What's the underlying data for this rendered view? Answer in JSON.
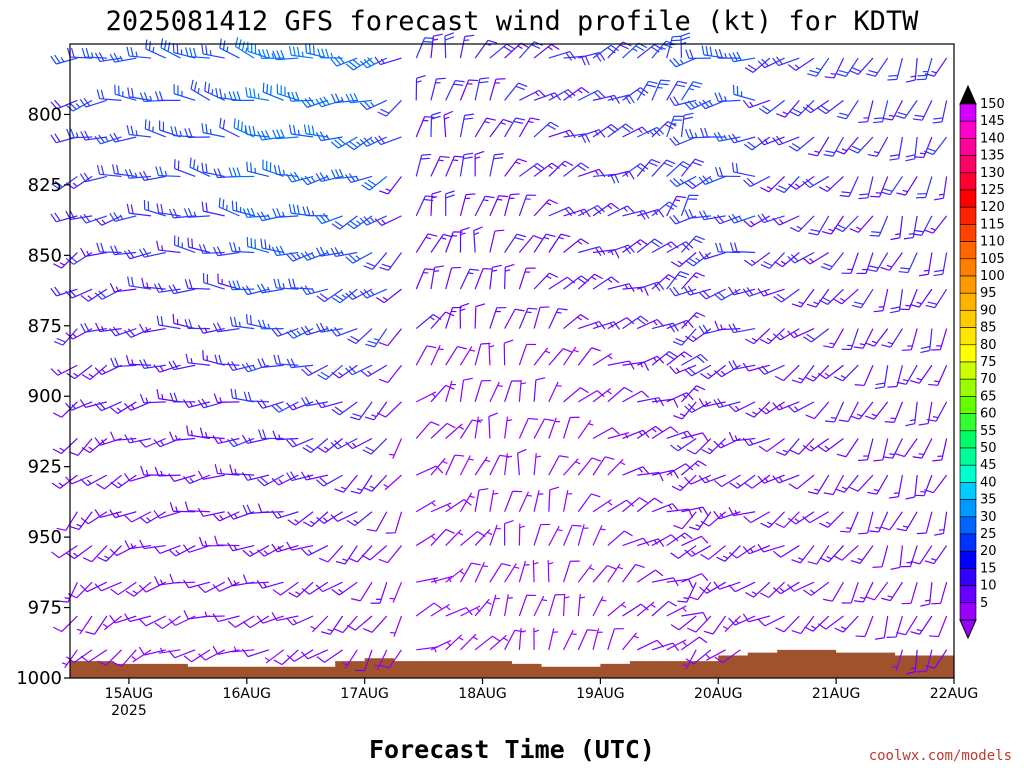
{
  "chart_data": {
    "type": "wind_barb_time_height",
    "title": "2025081412 GFS forecast wind profile (kt) for KDTW",
    "xlabel": "Forecast Time (UTC)",
    "ylabel": "",
    "units": "kt",
    "y_axis": {
      "range": [
        1000,
        775
      ],
      "ticks": [
        800,
        825,
        850,
        875,
        900,
        925,
        950,
        975,
        1000
      ]
    },
    "x_axis": {
      "start_hours": 0,
      "end_hours": 180,
      "ticks": [
        {
          "label": "15AUG",
          "sublabel": "2025"
        },
        {
          "label": "16AUG"
        },
        {
          "label": "17AUG"
        },
        {
          "label": "18AUG"
        },
        {
          "label": "19AUG"
        },
        {
          "label": "20AUG"
        },
        {
          "label": "21AUG"
        },
        {
          "label": "22AUG"
        }
      ]
    },
    "barb_levels_hpa": [
      780,
      795,
      808,
      822,
      836,
      849,
      862,
      876,
      889,
      902,
      915,
      928,
      941,
      953,
      966,
      978,
      990
    ],
    "barb_time_step_hours": 3,
    "surface_pressure_hpa": [
      [
        0,
        994
      ],
      [
        6,
        994
      ],
      [
        9,
        995
      ],
      [
        18,
        995
      ],
      [
        24,
        996
      ],
      [
        45,
        996
      ],
      [
        54,
        994
      ],
      [
        60,
        993
      ],
      [
        66,
        994
      ],
      [
        78,
        994
      ],
      [
        90,
        995
      ],
      [
        96,
        996
      ],
      [
        108,
        995
      ],
      [
        114,
        994
      ],
      [
        126,
        994
      ],
      [
        132,
        992
      ],
      [
        138,
        991
      ],
      [
        144,
        990
      ],
      [
        156,
        991
      ],
      [
        168,
        992
      ],
      [
        180,
        992
      ]
    ],
    "colorbar": {
      "labels": [
        "150",
        "145",
        "140",
        "135",
        "130",
        "125",
        "120",
        "115",
        "110",
        "105",
        "100",
        "95",
        "90",
        "85",
        "80",
        "75",
        "70",
        "65",
        "60",
        "55",
        "50",
        "45",
        "40",
        "35",
        "30",
        "25",
        "20",
        "15",
        "10",
        "5"
      ],
      "colors": [
        "#d300ff",
        "#ff00cc",
        "#ff0099",
        "#ff0066",
        "#ff0033",
        "#ff0000",
        "#ff2200",
        "#ff4400",
        "#ff6600",
        "#ff7f00",
        "#ff9900",
        "#ffb300",
        "#ffcc00",
        "#ffe600",
        "#ffff00",
        "#ccff00",
        "#99ff00",
        "#66ff00",
        "#33ff33",
        "#00ff66",
        "#00ff99",
        "#00ffcc",
        "#00ccff",
        "#0099ff",
        "#0066ff",
        "#0033ff",
        "#0000ff",
        "#3300ff",
        "#6600ff",
        "#9900ff"
      ],
      "top_arrow": "#000000",
      "bottom_arrow": "#9900ff"
    },
    "ground_color": "#a0522d",
    "grid": false,
    "legend": "right"
  },
  "credit": "coolwx.com/models"
}
